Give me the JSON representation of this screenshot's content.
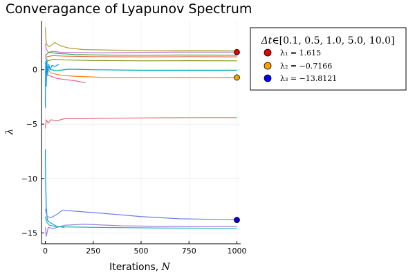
{
  "chart_data": {
    "type": "line",
    "title": "Converagance of Lyapunov Spectrum",
    "xlabel_text": "Iterations, ",
    "xlabel_math": "N",
    "ylabel_math": "λ",
    "xlim": [
      -20,
      1020
    ],
    "ylim": [
      -16,
      4.5
    ],
    "xticks": [
      0,
      250,
      500,
      750,
      1000
    ],
    "yticks": [
      0,
      -5,
      -10,
      -15
    ],
    "xtick_labels": [
      "0",
      "250",
      "500",
      "750",
      "1000"
    ],
    "ytick_labels": [
      "0",
      "−5",
      "−10",
      "−15"
    ],
    "grid": true,
    "legend_position": "top-right outside",
    "legend": {
      "title_math": "Δt",
      "title_rest": "∈[0.1, 0.5, 1.0, 5.0, 10.0]",
      "entries": [
        {
          "label": "λ₁ = 1.615",
          "color": "#e40000"
        },
        {
          "label": "λ₂ = −0.7166",
          "color": "#ff9f00"
        },
        {
          "label": "λ₃ = −13.8121",
          "color": "#0000ee"
        }
      ]
    },
    "final_points": [
      {
        "x": 1000,
        "y": 1.615,
        "color": "#e40000"
      },
      {
        "x": 1000,
        "y": -0.7166,
        "color": "#ff9f00"
      },
      {
        "x": 1000,
        "y": -13.8121,
        "color": "#0000ee"
      }
    ],
    "series": [
      {
        "color": "#a9a02e",
        "points": [
          [
            0,
            3.9
          ],
          [
            3,
            2.8
          ],
          [
            8,
            2.3
          ],
          [
            20,
            2.1
          ],
          [
            50,
            2.5
          ],
          [
            80,
            2.2
          ],
          [
            120,
            2.0
          ],
          [
            200,
            1.85
          ],
          [
            350,
            1.8
          ],
          [
            600,
            1.75
          ],
          [
            800,
            1.78
          ],
          [
            1000,
            1.75
          ]
        ]
      },
      {
        "color": "#c271d2",
        "points": [
          [
            0,
            2.4
          ],
          [
            5,
            1.9
          ],
          [
            15,
            1.6
          ],
          [
            40,
            1.7
          ],
          [
            80,
            1.6
          ],
          [
            150,
            1.6
          ],
          [
            300,
            1.55
          ],
          [
            500,
            1.6
          ],
          [
            700,
            1.62
          ],
          [
            1000,
            1.62
          ]
        ]
      },
      {
        "color": "#3da44d",
        "points": [
          [
            0,
            1.2
          ],
          [
            5,
            1.4
          ],
          [
            20,
            1.6
          ],
          [
            60,
            1.5
          ],
          [
            150,
            1.4
          ],
          [
            300,
            1.35
          ],
          [
            500,
            1.33
          ],
          [
            700,
            1.35
          ],
          [
            1000,
            1.34
          ]
        ]
      },
      {
        "color": "#e26f46",
        "points": [
          [
            0,
            1.0
          ],
          [
            10,
            1.2
          ],
          [
            40,
            1.3
          ],
          [
            100,
            1.25
          ],
          [
            250,
            1.2
          ],
          [
            500,
            1.18
          ],
          [
            750,
            1.2
          ],
          [
            1000,
            1.18
          ]
        ]
      },
      {
        "color": "#8e971d",
        "points": [
          [
            0,
            0.5
          ],
          [
            10,
            0.8
          ],
          [
            40,
            0.95
          ],
          [
            100,
            0.9
          ],
          [
            250,
            0.85
          ],
          [
            500,
            0.82
          ],
          [
            750,
            0.83
          ],
          [
            1000,
            0.82
          ]
        ]
      },
      {
        "color": "#00a9ad",
        "points": [
          [
            0,
            -0.2
          ],
          [
            10,
            0.3
          ],
          [
            30,
            0.0
          ],
          [
            60,
            -0.1
          ],
          [
            120,
            0.05
          ],
          [
            250,
            0.0
          ],
          [
            500,
            -0.05
          ],
          [
            750,
            -0.05
          ],
          [
            1000,
            -0.05
          ]
        ]
      },
      {
        "color": "#ff7f0e",
        "points": [
          [
            0,
            -0.3
          ],
          [
            10,
            0.1
          ],
          [
            30,
            -0.3
          ],
          [
            80,
            -0.5
          ],
          [
            150,
            -0.6
          ],
          [
            300,
            -0.7
          ],
          [
            600,
            -0.7
          ],
          [
            1000,
            -0.72
          ]
        ]
      },
      {
        "color": "#e0609a",
        "points": [
          [
            0,
            -0.8
          ],
          [
            10,
            -0.5
          ],
          [
            30,
            -0.6
          ],
          [
            60,
            -0.8
          ],
          [
            100,
            -0.9
          ],
          [
            150,
            -1.0
          ],
          [
            210,
            -1.2
          ]
        ]
      },
      {
        "color": "#009af9",
        "points": [
          [
            0,
            -3.5
          ],
          [
            2,
            0.8
          ],
          [
            5,
            -1.5
          ],
          [
            8,
            1.0
          ],
          [
            12,
            -0.5
          ],
          [
            18,
            0.5
          ],
          [
            25,
            0.0
          ],
          [
            35,
            0.4
          ],
          [
            50,
            0.3
          ],
          [
            70,
            0.5
          ]
        ]
      },
      {
        "color": "#e26f74",
        "points": [
          [
            0,
            -5.4
          ],
          [
            5,
            -4.6
          ],
          [
            15,
            -4.9
          ],
          [
            30,
            -4.6
          ],
          [
            60,
            -4.7
          ],
          [
            100,
            -4.5
          ],
          [
            200,
            -4.5
          ],
          [
            400,
            -4.45
          ],
          [
            600,
            -4.42
          ],
          [
            800,
            -4.4
          ],
          [
            1000,
            -4.4
          ]
        ]
      },
      {
        "color": "#009af9",
        "points": [
          [
            0,
            -7.3
          ],
          [
            2,
            -10.5
          ],
          [
            5,
            -12.5
          ],
          [
            10,
            -13.8
          ],
          [
            20,
            -14.0
          ],
          [
            40,
            -14.2
          ],
          [
            60,
            -14.4
          ],
          [
            100,
            -14.5
          ]
        ]
      },
      {
        "color": "#6a7ff0",
        "points": [
          [
            0,
            -12.8
          ],
          [
            10,
            -13.5
          ],
          [
            30,
            -13.6
          ],
          [
            60,
            -13.3
          ],
          [
            90,
            -12.9
          ],
          [
            150,
            -13.0
          ],
          [
            300,
            -13.2
          ],
          [
            500,
            -13.5
          ],
          [
            700,
            -13.7
          ],
          [
            1000,
            -13.8
          ]
        ]
      },
      {
        "color": "#9b78e0",
        "points": [
          [
            0,
            -14.5
          ],
          [
            5,
            -15.3
          ],
          [
            15,
            -14.5
          ],
          [
            40,
            -14.6
          ],
          [
            100,
            -14.3
          ],
          [
            200,
            -14.2
          ],
          [
            400,
            -14.35
          ],
          [
            600,
            -14.4
          ],
          [
            800,
            -14.42
          ],
          [
            1000,
            -14.4
          ]
        ]
      },
      {
        "color": "#1cb5a5",
        "points": [
          [
            0,
            -13.5
          ],
          [
            8,
            -14.0
          ],
          [
            20,
            -14.3
          ],
          [
            50,
            -14.4
          ],
          [
            100,
            -14.45
          ],
          [
            300,
            -14.5
          ],
          [
            600,
            -14.55
          ],
          [
            1000,
            -14.58
          ]
        ]
      }
    ]
  }
}
